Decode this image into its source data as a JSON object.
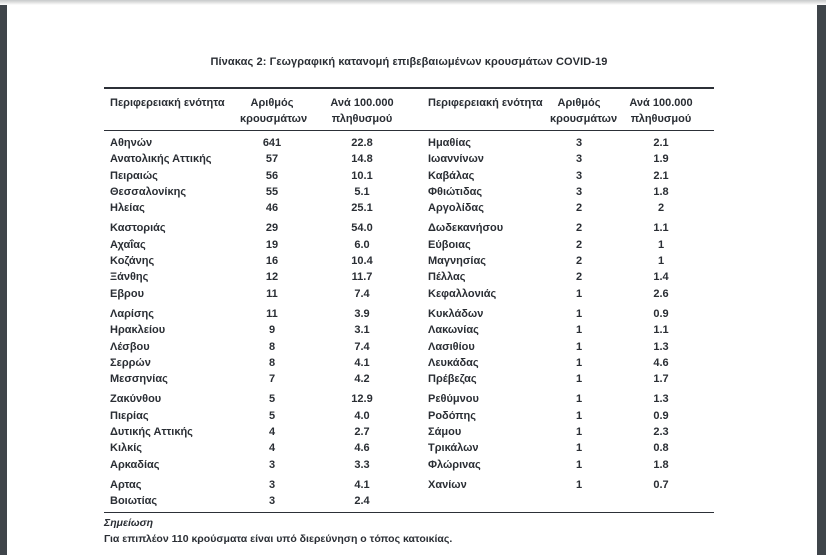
{
  "colors": {
    "frame_edge": "#3f454a",
    "text": "#2a2e34",
    "rule": "#2c3037"
  },
  "document": {
    "title": "Πίνακας 2: Γεωγραφική κατανομή επιβεβαιωμένων κρουσμάτων COVID-19",
    "note": {
      "label": "Σημείωση",
      "text": "Για επιπλέον 110 κρούσματα είναι υπό διερεύνηση ο τόπος κατοικίας."
    }
  },
  "table": {
    "headers": {
      "region": "Περιφερειακή ενότητα",
      "cases_line1": "Αριθμός",
      "cases_line2": "κρουσμάτων",
      "rate_line1": "Ανά 100.000",
      "rate_line2": "πληθυσμού"
    },
    "groups": [
      {
        "rows": [
          {
            "left": {
              "region": "Αθηνών",
              "cases": "641",
              "rate": "22.8"
            },
            "right": {
              "region": "Ημαθίας",
              "cases": "3",
              "rate": "2.1"
            }
          },
          {
            "left": {
              "region": "Ανατολικής Αττικής",
              "cases": "57",
              "rate": "14.8"
            },
            "right": {
              "region": "Ιωαννίνων",
              "cases": "3",
              "rate": "1.9"
            }
          },
          {
            "left": {
              "region": "Πειραιώς",
              "cases": "56",
              "rate": "10.1"
            },
            "right": {
              "region": "Καβάλας",
              "cases": "3",
              "rate": "2.1"
            }
          },
          {
            "left": {
              "region": "Θεσσαλονίκης",
              "cases": "55",
              "rate": "5.1"
            },
            "right": {
              "region": "Φθιώτιδας",
              "cases": "3",
              "rate": "1.8"
            }
          },
          {
            "left": {
              "region": "Ηλείας",
              "cases": "46",
              "rate": "25.1"
            },
            "right": {
              "region": "Αργολίδας",
              "cases": "2",
              "rate": "2"
            }
          }
        ]
      },
      {
        "rows": [
          {
            "left": {
              "region": "Καστοριάς",
              "cases": "29",
              "rate": "54.0"
            },
            "right": {
              "region": "Δωδεκανήσου",
              "cases": "2",
              "rate": "1.1"
            }
          },
          {
            "left": {
              "region": "Αχαΐας",
              "cases": "19",
              "rate": "6.0"
            },
            "right": {
              "region": "Εύβοιας",
              "cases": "2",
              "rate": "1"
            }
          },
          {
            "left": {
              "region": "Κοζάνης",
              "cases": "16",
              "rate": "10.4"
            },
            "right": {
              "region": "Μαγνησίας",
              "cases": "2",
              "rate": "1"
            }
          },
          {
            "left": {
              "region": "Ξάνθης",
              "cases": "12",
              "rate": "11.7"
            },
            "right": {
              "region": "Πέλλας",
              "cases": "2",
              "rate": "1.4"
            }
          },
          {
            "left": {
              "region": "Εβρου",
              "cases": "11",
              "rate": "7.4"
            },
            "right": {
              "region": "Κεφαλλονιάς",
              "cases": "1",
              "rate": "2.6"
            }
          }
        ]
      },
      {
        "rows": [
          {
            "left": {
              "region": "Λαρίσης",
              "cases": "11",
              "rate": "3.9"
            },
            "right": {
              "region": "Κυκλάδων",
              "cases": "1",
              "rate": "0.9"
            }
          },
          {
            "left": {
              "region": "Ηρακλείου",
              "cases": "9",
              "rate": "3.1"
            },
            "right": {
              "region": "Λακωνίας",
              "cases": "1",
              "rate": "1.1"
            }
          },
          {
            "left": {
              "region": "Λέσβου",
              "cases": "8",
              "rate": "7.4"
            },
            "right": {
              "region": "Λασιθίου",
              "cases": "1",
              "rate": "1.3"
            }
          },
          {
            "left": {
              "region": "Σερρών",
              "cases": "8",
              "rate": "4.1"
            },
            "right": {
              "region": "Λευκάδας",
              "cases": "1",
              "rate": "4.6"
            }
          },
          {
            "left": {
              "region": "Μεσσηνίας",
              "cases": "7",
              "rate": "4.2"
            },
            "right": {
              "region": "Πρέβεζας",
              "cases": "1",
              "rate": "1.7"
            }
          }
        ]
      },
      {
        "rows": [
          {
            "left": {
              "region": "Ζακύνθου",
              "cases": "5",
              "rate": "12.9"
            },
            "right": {
              "region": "Ρεθύμνου",
              "cases": "1",
              "rate": "1.3"
            }
          },
          {
            "left": {
              "region": "Πιερίας",
              "cases": "5",
              "rate": "4.0"
            },
            "right": {
              "region": "Ροδόπης",
              "cases": "1",
              "rate": "0.9"
            }
          },
          {
            "left": {
              "region": "Δυτικής Αττικής",
              "cases": "4",
              "rate": "2.7"
            },
            "right": {
              "region": "Σάμου",
              "cases": "1",
              "rate": "2.3"
            }
          },
          {
            "left": {
              "region": "Κιλκίς",
              "cases": "4",
              "rate": "4.6"
            },
            "right": {
              "region": "Τρικάλων",
              "cases": "1",
              "rate": "0.8"
            }
          },
          {
            "left": {
              "region": "Αρκαδίας",
              "cases": "3",
              "rate": "3.3"
            },
            "right": {
              "region": "Φλώρινας",
              "cases": "1",
              "rate": "1.8"
            }
          }
        ]
      },
      {
        "rows": [
          {
            "left": {
              "region": "Αρτας",
              "cases": "3",
              "rate": "4.1"
            },
            "right": {
              "region": "Χανίων",
              "cases": "1",
              "rate": "0.7"
            }
          },
          {
            "left": {
              "region": "Βοιωτίας",
              "cases": "3",
              "rate": "2.4"
            },
            "right": null
          }
        ]
      }
    ]
  }
}
